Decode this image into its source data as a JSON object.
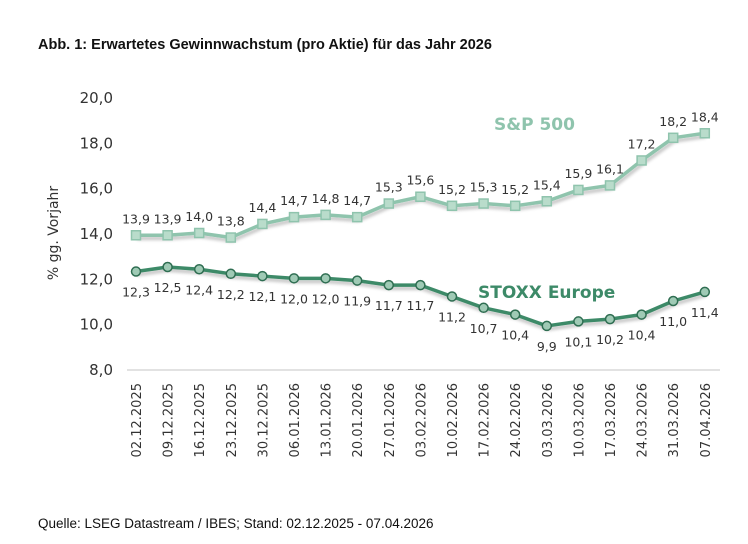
{
  "chart_data": {
    "type": "line",
    "title": "Abb. 1: Erwartetes Gewinnwachstum (pro Aktie) für das Jahr 2026",
    "xlabel": "",
    "ylabel": "% gg. Vorjahr",
    "ylim": [
      8.0,
      20.0
    ],
    "yticks": [
      "8,0",
      "10,0",
      "12,0",
      "14,0",
      "16,0",
      "18,0",
      "20,0"
    ],
    "ytick_values": [
      8,
      10,
      12,
      14,
      16,
      18,
      20
    ],
    "grid": false,
    "categories": [
      "02.12.2025",
      "09.12.2025",
      "16.12.2025",
      "23.12.2025",
      "30.12.2025",
      "06.01.2026",
      "13.01.2026",
      "20.01.2026",
      "27.01.2026",
      "03.02.2026",
      "10.02.2026",
      "17.02.2026",
      "24.02.2026",
      "03.03.2026",
      "10.03.2026",
      "17.03.2026",
      "24.03.2026",
      "31.03.2026",
      "07.04.2026"
    ],
    "series": [
      {
        "name": "S&P 500",
        "color": "#8fc4ad",
        "marker": "square",
        "values": [
          13.9,
          13.9,
          14.0,
          13.8,
          14.4,
          14.7,
          14.8,
          14.7,
          15.3,
          15.6,
          15.2,
          15.3,
          15.2,
          15.4,
          15.9,
          16.1,
          17.2,
          18.2,
          18.4
        ],
        "labels": [
          "13,9",
          "13,9",
          "14,0",
          "13,8",
          "14,4",
          "14,7",
          "14,8",
          "14,7",
          "15,3",
          "15,6",
          "15,2",
          "15,3",
          "15,2",
          "15,4",
          "15,9",
          "16,1",
          "17,2",
          "18,2",
          "18,4"
        ]
      },
      {
        "name": "STOXX Europe",
        "color": "#3d8a68",
        "marker": "circle",
        "values": [
          12.3,
          12.5,
          12.4,
          12.2,
          12.1,
          12.0,
          12.0,
          11.9,
          11.7,
          11.7,
          11.2,
          10.7,
          10.4,
          9.9,
          10.1,
          10.2,
          10.4,
          11.0,
          11.4
        ],
        "labels": [
          "12,3",
          "12,5",
          "12,4",
          "12,2",
          "12,1",
          "12,0",
          "12,0",
          "11,9",
          "11,7",
          "11,7",
          "11,2",
          "10,7",
          "10,4",
          "9,9",
          "10,1",
          "10,2",
          "10,4",
          "11,0",
          "11,4"
        ]
      }
    ],
    "legend": "inline-labels"
  },
  "source": "Quelle: LSEG Datastream / IBES; Stand: 02.12.2025 - 07.04.2026"
}
